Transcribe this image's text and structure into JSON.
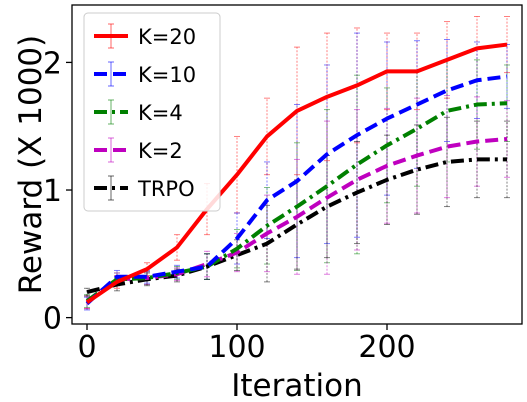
{
  "chart_data": {
    "type": "line",
    "xlabel": "Iteration",
    "ylabel": "Reward (X 1000)",
    "xlim": [
      -10,
      290
    ],
    "ylim": [
      -0.05,
      2.45
    ],
    "xticks": [
      0,
      100,
      200
    ],
    "xtick_labels": [
      "0",
      "100",
      "200"
    ],
    "yticks": [
      0,
      1,
      2
    ],
    "ytick_labels": [
      "0",
      "1",
      "2"
    ],
    "grid": false,
    "legend_position": "top-left",
    "x": [
      0,
      20,
      40,
      60,
      80,
      100,
      120,
      140,
      160,
      180,
      200,
      220,
      240,
      260,
      280
    ],
    "series": [
      {
        "name": "K=20",
        "color": "#ff0000",
        "dash": "solid",
        "values": [
          0.12,
          0.28,
          0.38,
          0.55,
          0.85,
          1.12,
          1.42,
          1.62,
          1.73,
          1.82,
          1.93,
          1.93,
          2.02,
          2.11,
          2.14
        ],
        "errors": [
          0.05,
          0.05,
          0.05,
          0.1,
          0.2,
          0.3,
          0.3,
          0.5,
          0.5,
          0.45,
          0.3,
          0.3,
          0.3,
          0.25,
          0.22
        ]
      },
      {
        "name": "K=10",
        "color": "#0000ff",
        "dash": "dashed",
        "values": [
          0.11,
          0.32,
          0.32,
          0.36,
          0.4,
          0.62,
          0.92,
          1.07,
          1.28,
          1.43,
          1.56,
          1.67,
          1.78,
          1.86,
          1.89
        ],
        "errors": [
          0.05,
          0.05,
          0.05,
          0.05,
          0.1,
          0.2,
          0.3,
          0.6,
          0.7,
          0.8,
          0.6,
          0.5,
          0.4,
          0.3,
          0.25
        ]
      },
      {
        "name": "K=4",
        "color": "#008000",
        "dash": "dashdot",
        "values": [
          0.13,
          0.3,
          0.31,
          0.35,
          0.4,
          0.54,
          0.72,
          0.87,
          1.03,
          1.2,
          1.35,
          1.48,
          1.62,
          1.67,
          1.68
        ],
        "errors": [
          0.05,
          0.05,
          0.05,
          0.05,
          0.1,
          0.15,
          0.3,
          0.5,
          0.6,
          0.7,
          0.45,
          0.45,
          0.4,
          0.35,
          0.3
        ]
      },
      {
        "name": "K=2",
        "color": "#bf00bf",
        "dash": "dashed",
        "values": [
          0.12,
          0.3,
          0.31,
          0.34,
          0.42,
          0.51,
          0.66,
          0.79,
          0.94,
          1.08,
          1.19,
          1.27,
          1.34,
          1.38,
          1.4
        ],
        "errors": [
          0.05,
          0.05,
          0.05,
          0.05,
          0.1,
          0.15,
          0.3,
          0.45,
          0.6,
          0.55,
          0.45,
          0.45,
          0.4,
          0.35,
          0.3
        ]
      },
      {
        "name": "TRPO",
        "color": "#000000",
        "dash": "dashdot",
        "values": [
          0.2,
          0.26,
          0.3,
          0.33,
          0.4,
          0.49,
          0.58,
          0.73,
          0.87,
          0.98,
          1.08,
          1.16,
          1.22,
          1.24,
          1.24
        ],
        "errors": [
          0.03,
          0.05,
          0.05,
          0.05,
          0.1,
          0.12,
          0.3,
          0.35,
          0.4,
          0.4,
          0.35,
          0.35,
          0.35,
          0.3,
          0.3
        ]
      }
    ]
  }
}
